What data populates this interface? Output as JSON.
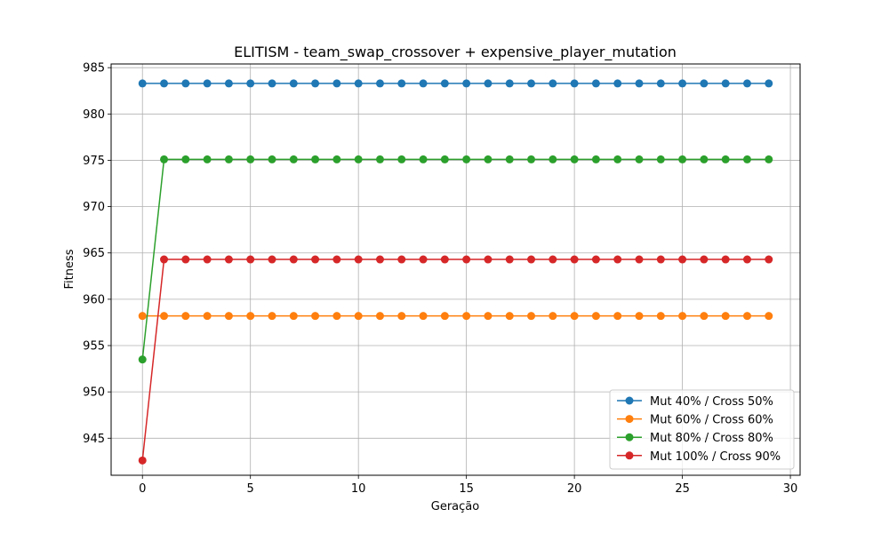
{
  "chart_data": {
    "type": "line",
    "title": "ELITISM - team_swap_crossover + expensive_player_mutation",
    "xlabel": "Geração",
    "ylabel": "Fitness",
    "xlim": [
      -1.45,
      30.45
    ],
    "ylim": [
      941.0,
      985.4
    ],
    "xticks": [
      0,
      5,
      10,
      15,
      20,
      25,
      30
    ],
    "yticks": [
      945,
      950,
      955,
      960,
      965,
      970,
      975,
      980,
      985
    ],
    "grid": true,
    "legend_position": "lower-right",
    "x": [
      0,
      1,
      2,
      3,
      4,
      5,
      6,
      7,
      8,
      9,
      10,
      11,
      12,
      13,
      14,
      15,
      16,
      17,
      18,
      19,
      20,
      21,
      22,
      23,
      24,
      25,
      26,
      27,
      28,
      29
    ],
    "series": [
      {
        "name": "Mut 40% / Cross 50%",
        "color": "#1f77b4",
        "values": [
          983.3,
          983.3,
          983.3,
          983.3,
          983.3,
          983.3,
          983.3,
          983.3,
          983.3,
          983.3,
          983.3,
          983.3,
          983.3,
          983.3,
          983.3,
          983.3,
          983.3,
          983.3,
          983.3,
          983.3,
          983.3,
          983.3,
          983.3,
          983.3,
          983.3,
          983.3,
          983.3,
          983.3,
          983.3,
          983.3
        ]
      },
      {
        "name": "Mut 60% / Cross 60%",
        "color": "#ff7f0e",
        "values": [
          958.2,
          958.2,
          958.2,
          958.2,
          958.2,
          958.2,
          958.2,
          958.2,
          958.2,
          958.2,
          958.2,
          958.2,
          958.2,
          958.2,
          958.2,
          958.2,
          958.2,
          958.2,
          958.2,
          958.2,
          958.2,
          958.2,
          958.2,
          958.2,
          958.2,
          958.2,
          958.2,
          958.2,
          958.2,
          958.2
        ]
      },
      {
        "name": "Mut 80% / Cross 80%",
        "color": "#2ca02c",
        "values": [
          953.5,
          975.1,
          975.1,
          975.1,
          975.1,
          975.1,
          975.1,
          975.1,
          975.1,
          975.1,
          975.1,
          975.1,
          975.1,
          975.1,
          975.1,
          975.1,
          975.1,
          975.1,
          975.1,
          975.1,
          975.1,
          975.1,
          975.1,
          975.1,
          975.1,
          975.1,
          975.1,
          975.1,
          975.1,
          975.1
        ]
      },
      {
        "name": "Mut 100% / Cross 90%",
        "color": "#d62728",
        "values": [
          942.6,
          964.3,
          964.3,
          964.3,
          964.3,
          964.3,
          964.3,
          964.3,
          964.3,
          964.3,
          964.3,
          964.3,
          964.3,
          964.3,
          964.3,
          964.3,
          964.3,
          964.3,
          964.3,
          964.3,
          964.3,
          964.3,
          964.3,
          964.3,
          964.3,
          964.3,
          964.3,
          964.3,
          964.3,
          964.3
        ]
      }
    ]
  }
}
